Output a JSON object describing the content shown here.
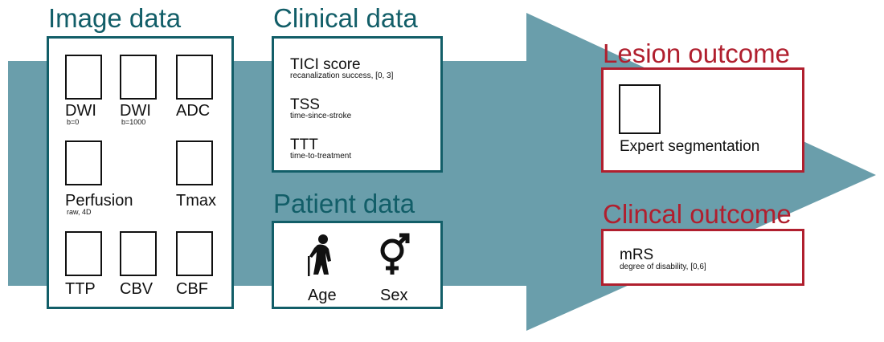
{
  "colors": {
    "arrow": "#6a9eab",
    "teal": "#125e68",
    "red": "#b01f2e"
  },
  "image_data": {
    "heading": "Image data",
    "items": [
      {
        "label": "DWI",
        "sub": "b=0"
      },
      {
        "label": "DWI",
        "sub": "b=1000"
      },
      {
        "label": "ADC",
        "sub": ""
      },
      {
        "label": "Perfusion",
        "sub": "raw, 4D"
      },
      {
        "label": "Tmax",
        "sub": ""
      },
      {
        "label": "TTP",
        "sub": ""
      },
      {
        "label": "CBV",
        "sub": ""
      },
      {
        "label": "CBF",
        "sub": ""
      }
    ]
  },
  "clinical_data": {
    "heading": "Clinical data",
    "items": [
      {
        "title": "TICI score",
        "sub": "recanalization success, [0, 3]"
      },
      {
        "title": "TSS",
        "sub": "time-since-stroke"
      },
      {
        "title": "TTT",
        "sub": "time-to-treatment"
      }
    ]
  },
  "patient_data": {
    "heading": "Patient data",
    "items": [
      {
        "label": "Age",
        "icon": "elderly-person-icon"
      },
      {
        "label": "Sex",
        "icon": "gender-symbol-icon"
      }
    ]
  },
  "lesion_outcome": {
    "heading": "Lesion outcome",
    "label": "Expert segmentation"
  },
  "clinical_outcome": {
    "heading": "Clincal outcome",
    "title": "mRS",
    "sub": "degree of disability, [0,6]"
  }
}
